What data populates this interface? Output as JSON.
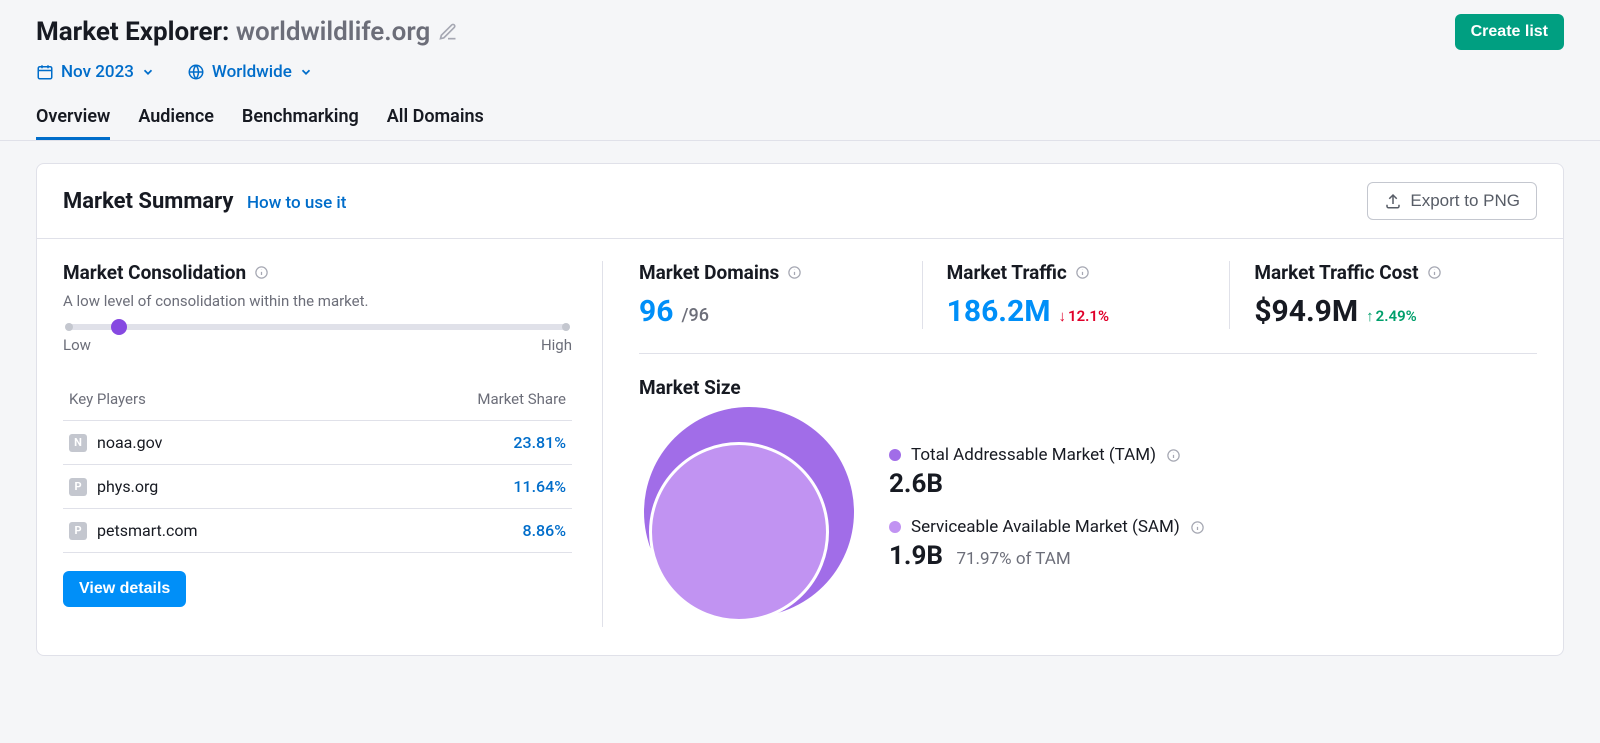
{
  "header": {
    "title_prefix": "Market Explorer: ",
    "domain": "worldwildlife.org",
    "create_list_label": "Create list",
    "date_filter": "Nov 2023",
    "region_filter": "Worldwide"
  },
  "tabs": [
    "Overview",
    "Audience",
    "Benchmarking",
    "All Domains"
  ],
  "active_tab_index": 0,
  "card": {
    "title": "Market Summary",
    "how_link": "How to use it",
    "export_label": "Export to PNG"
  },
  "consolidation": {
    "title": "Market Consolidation",
    "description": "A low level of consolidation within the market.",
    "position_pct": 10,
    "low_label": "Low",
    "high_label": "High",
    "thumb_color": "#8649e1"
  },
  "players_table": {
    "col_player": "Key Players",
    "col_share": "Market Share",
    "rows": [
      {
        "initial": "N",
        "domain": "noaa.gov",
        "share": "23.81%"
      },
      {
        "initial": "P",
        "domain": "phys.org",
        "share": "11.64%"
      },
      {
        "initial": "P",
        "domain": "petsmart.com",
        "share": "8.86%"
      }
    ],
    "view_details_label": "View details"
  },
  "metrics": {
    "domains": {
      "label": "Market Domains",
      "value": "96",
      "sub": "/96",
      "value_color": "blue"
    },
    "traffic": {
      "label": "Market Traffic",
      "value": "186.2M",
      "delta": "12.1%",
      "delta_dir": "down",
      "value_color": "blue"
    },
    "cost": {
      "label": "Market Traffic Cost",
      "value": "$94.9M",
      "delta": "2.49%",
      "delta_dir": "up",
      "value_color": "black"
    }
  },
  "market_size": {
    "title": "Market Size",
    "tam": {
      "label": "Total Addressable Market (TAM)",
      "value": "2.6B",
      "color": "#a16de8"
    },
    "sam": {
      "label": "Serviceable Available Market (SAM)",
      "value": "1.9B",
      "sub": "71.97% of TAM",
      "color": "#c193f2"
    }
  },
  "colors": {
    "link_blue": "#006dca",
    "accent_blue": "#008ff8",
    "green_btn": "#009f81"
  }
}
